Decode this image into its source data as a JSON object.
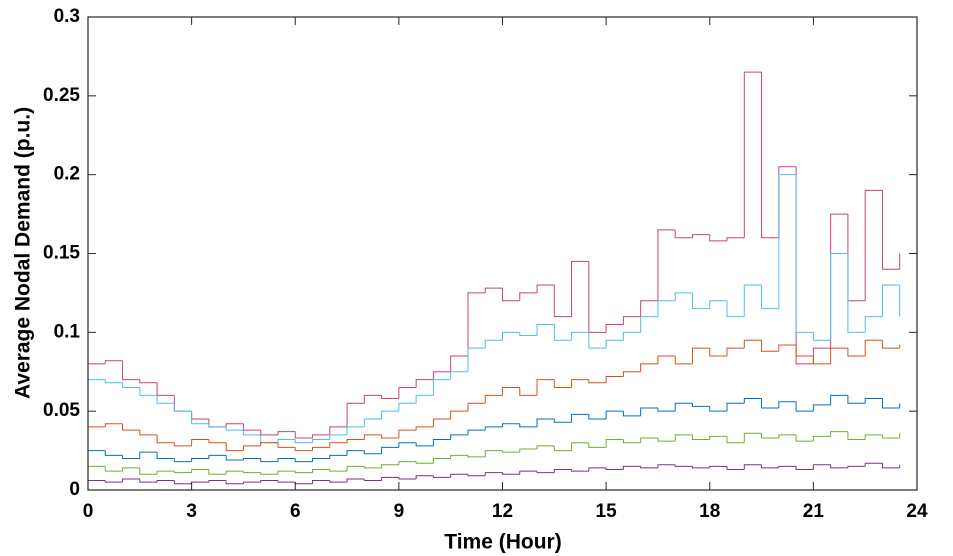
{
  "chart_data": {
    "type": "stairs",
    "x_label": "Time (Hour)",
    "y_label": "Average Nodal Demand (p.u.)",
    "xlim": [
      0,
      24
    ],
    "xticks": [
      0,
      3,
      6,
      9,
      12,
      15,
      18,
      21,
      24
    ],
    "ylim": [
      0,
      0.3
    ],
    "yticks": [
      0,
      0.05,
      0.1,
      0.15,
      0.2,
      0.25,
      0.3
    ],
    "grid": false,
    "x": [
      0,
      0.5,
      1,
      1.5,
      2,
      2.5,
      3,
      3.5,
      4,
      4.5,
      5,
      5.5,
      6,
      6.5,
      7,
      7.5,
      8,
      8.5,
      9,
      9.5,
      10,
      10.5,
      11,
      11.5,
      12,
      12.5,
      13,
      13.5,
      14,
      14.5,
      15,
      15.5,
      16,
      16.5,
      17,
      17.5,
      18,
      18.5,
      19,
      19.5,
      20,
      20.5,
      21,
      21.5,
      22,
      22.5,
      23,
      23.5
    ],
    "series": [
      {
        "color": "#c7407a",
        "values": [
          0.08,
          0.082,
          0.07,
          0.068,
          0.06,
          0.05,
          0.045,
          0.04,
          0.042,
          0.038,
          0.035,
          0.037,
          0.033,
          0.035,
          0.04,
          0.055,
          0.06,
          0.058,
          0.065,
          0.07,
          0.075,
          0.085,
          0.125,
          0.128,
          0.12,
          0.125,
          0.13,
          0.11,
          0.145,
          0.1,
          0.105,
          0.11,
          0.12,
          0.165,
          0.16,
          0.162,
          0.158,
          0.16,
          0.265,
          0.16,
          0.205,
          0.08,
          0.09,
          0.175,
          0.12,
          0.19,
          0.14,
          0.15
        ]
      },
      {
        "color": "#4dbeee",
        "values": [
          0.07,
          0.068,
          0.065,
          0.06,
          0.055,
          0.05,
          0.042,
          0.04,
          0.038,
          0.035,
          0.03,
          0.032,
          0.03,
          0.032,
          0.035,
          0.04,
          0.045,
          0.05,
          0.055,
          0.06,
          0.07,
          0.075,
          0.09,
          0.095,
          0.1,
          0.098,
          0.105,
          0.095,
          0.1,
          0.09,
          0.095,
          0.1,
          0.11,
          0.12,
          0.125,
          0.115,
          0.12,
          0.11,
          0.13,
          0.115,
          0.2,
          0.1,
          0.095,
          0.15,
          0.1,
          0.11,
          0.13,
          0.11
        ]
      },
      {
        "color": "#d95319",
        "values": [
          0.04,
          0.042,
          0.038,
          0.035,
          0.03,
          0.028,
          0.032,
          0.03,
          0.025,
          0.028,
          0.03,
          0.027,
          0.025,
          0.027,
          0.03,
          0.032,
          0.035,
          0.033,
          0.038,
          0.04,
          0.045,
          0.05,
          0.055,
          0.06,
          0.065,
          0.06,
          0.07,
          0.065,
          0.07,
          0.068,
          0.072,
          0.075,
          0.08,
          0.085,
          0.08,
          0.09,
          0.085,
          0.09,
          0.095,
          0.088,
          0.092,
          0.085,
          0.08,
          0.09,
          0.085,
          0.095,
          0.09,
          0.092
        ]
      },
      {
        "color": "#0072bd",
        "values": [
          0.025,
          0.022,
          0.02,
          0.024,
          0.02,
          0.018,
          0.02,
          0.022,
          0.019,
          0.02,
          0.018,
          0.02,
          0.018,
          0.02,
          0.022,
          0.025,
          0.023,
          0.027,
          0.03,
          0.028,
          0.032,
          0.035,
          0.038,
          0.04,
          0.042,
          0.04,
          0.045,
          0.043,
          0.048,
          0.045,
          0.05,
          0.047,
          0.052,
          0.05,
          0.055,
          0.053,
          0.05,
          0.055,
          0.058,
          0.052,
          0.056,
          0.05,
          0.054,
          0.06,
          0.055,
          0.058,
          0.052,
          0.055
        ]
      },
      {
        "color": "#77ac30",
        "values": [
          0.015,
          0.012,
          0.014,
          0.01,
          0.012,
          0.011,
          0.013,
          0.01,
          0.012,
          0.011,
          0.01,
          0.012,
          0.011,
          0.013,
          0.012,
          0.015,
          0.014,
          0.016,
          0.018,
          0.017,
          0.02,
          0.022,
          0.021,
          0.025,
          0.024,
          0.026,
          0.028,
          0.025,
          0.03,
          0.027,
          0.032,
          0.03,
          0.033,
          0.031,
          0.035,
          0.032,
          0.034,
          0.03,
          0.036,
          0.033,
          0.035,
          0.031,
          0.034,
          0.037,
          0.032,
          0.035,
          0.033,
          0.036
        ]
      },
      {
        "color": "#7e2f8e",
        "values": [
          0.006,
          0.005,
          0.007,
          0.005,
          0.006,
          0.004,
          0.005,
          0.006,
          0.004,
          0.005,
          0.006,
          0.005,
          0.004,
          0.006,
          0.005,
          0.007,
          0.006,
          0.008,
          0.007,
          0.009,
          0.008,
          0.01,
          0.009,
          0.011,
          0.01,
          0.012,
          0.011,
          0.013,
          0.012,
          0.014,
          0.013,
          0.015,
          0.014,
          0.016,
          0.015,
          0.014,
          0.015,
          0.013,
          0.016,
          0.014,
          0.015,
          0.013,
          0.016,
          0.014,
          0.015,
          0.017,
          0.014,
          0.016
        ]
      }
    ]
  }
}
